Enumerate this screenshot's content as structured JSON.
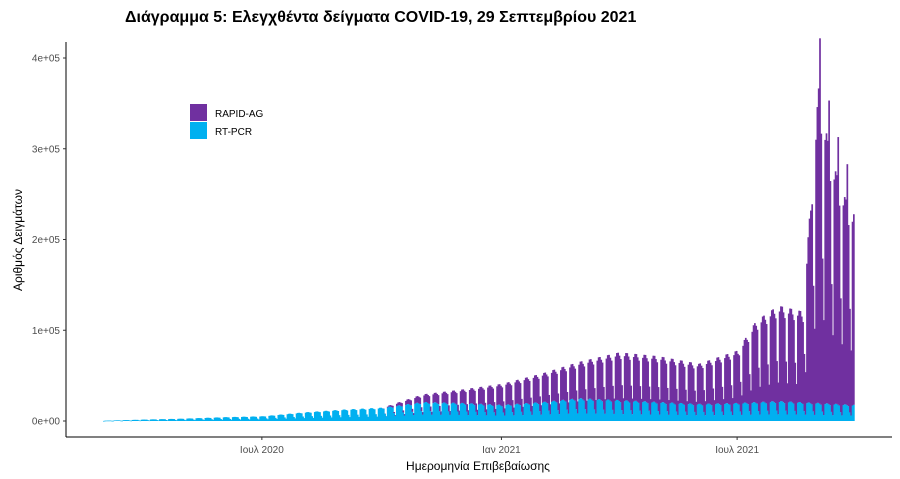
{
  "chart_data": {
    "type": "bar",
    "stacked": true,
    "title": "Διάγραμμα 5: Ελεγχθέντα δείγματα COVID-19, 29 Σεπτεμβρίου 2021",
    "xlabel": "Ημερομηνία Επιβεβαίωσης",
    "ylabel": "Αριθμός Δειγμάτων",
    "x_range": [
      "2020-03-01",
      "2021-09-28"
    ],
    "ylim": [
      0,
      420000
    ],
    "y_ticks": [
      {
        "value": 0,
        "label": "0e+00"
      },
      {
        "value": 100000,
        "label": "1e+05"
      },
      {
        "value": 200000,
        "label": "2e+05"
      },
      {
        "value": 300000,
        "label": "3e+05"
      },
      {
        "value": 400000,
        "label": "4e+05"
      }
    ],
    "x_ticks": [
      {
        "date": "2020-07-01",
        "label": "Ιουλ 2020"
      },
      {
        "date": "2021-01-01",
        "label": "Ιαν 2021"
      },
      {
        "date": "2021-07-01",
        "label": "Ιουλ 2021"
      }
    ],
    "legend_position": "top-left",
    "grid": false,
    "series": [
      {
        "name": "RT-PCR",
        "color": "#00b0f0",
        "points": [
          [
            "2020-03-01",
            300
          ],
          [
            "2020-04-01",
            1500
          ],
          [
            "2020-05-01",
            2500
          ],
          [
            "2020-06-01",
            4000
          ],
          [
            "2020-07-01",
            5000
          ],
          [
            "2020-08-01",
            9000
          ],
          [
            "2020-09-01",
            12000
          ],
          [
            "2020-10-01",
            14000
          ],
          [
            "2020-11-01",
            20000
          ],
          [
            "2020-12-01",
            19000
          ],
          [
            "2021-01-01",
            17000
          ],
          [
            "2021-02-01",
            20000
          ],
          [
            "2021-03-01",
            24000
          ],
          [
            "2021-04-01",
            22000
          ],
          [
            "2021-05-01",
            20000
          ],
          [
            "2021-06-01",
            18000
          ],
          [
            "2021-07-01",
            19000
          ],
          [
            "2021-08-01",
            21000
          ],
          [
            "2021-09-01",
            19000
          ],
          [
            "2021-09-28",
            17000
          ]
        ]
      },
      {
        "name": "RAPID-AG",
        "color": "#7030a0",
        "points": [
          [
            "2020-03-01",
            0
          ],
          [
            "2020-07-01",
            0
          ],
          [
            "2020-10-01",
            0
          ],
          [
            "2020-11-01",
            8000
          ],
          [
            "2020-12-01",
            14000
          ],
          [
            "2021-01-01",
            22000
          ],
          [
            "2021-02-01",
            30000
          ],
          [
            "2021-03-01",
            38000
          ],
          [
            "2021-04-01",
            50000
          ],
          [
            "2021-05-01",
            48000
          ],
          [
            "2021-06-01",
            42000
          ],
          [
            "2021-07-01",
            55000
          ],
          [
            "2021-07-15",
            85000
          ],
          [
            "2021-08-01",
            100000
          ],
          [
            "2021-08-20",
            95000
          ],
          [
            "2021-09-01",
            330000
          ],
          [
            "2021-09-10",
            260000
          ],
          [
            "2021-09-20",
            220000
          ],
          [
            "2021-09-28",
            200000
          ]
        ]
      }
    ]
  }
}
